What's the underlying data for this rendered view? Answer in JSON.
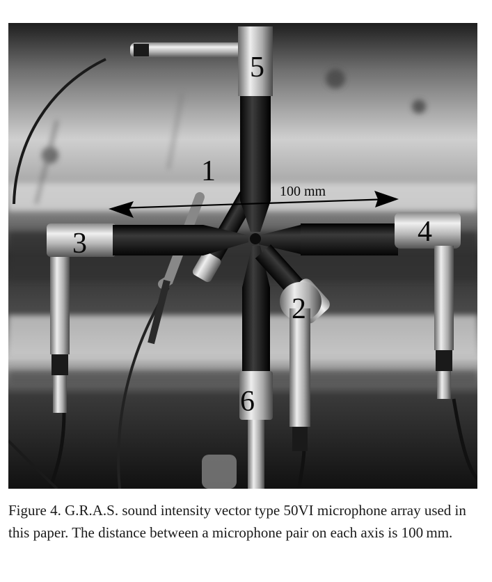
{
  "figure": {
    "mic_labels": [
      "1",
      "2",
      "3",
      "4",
      "5",
      "6"
    ],
    "distance_label": "100 mm",
    "image_description_icon": "microphone-array-photo"
  },
  "caption": {
    "text": "Figure 4. G.R.A.S. sound intensity vector type 50VI microphone array used in this paper. The distance between a microphone pair on each axis is 100 mm."
  },
  "colors": {
    "mic_body": "#141414",
    "mic_metal": "#c8c8c8",
    "background_dark": "#2a2a2a"
  }
}
